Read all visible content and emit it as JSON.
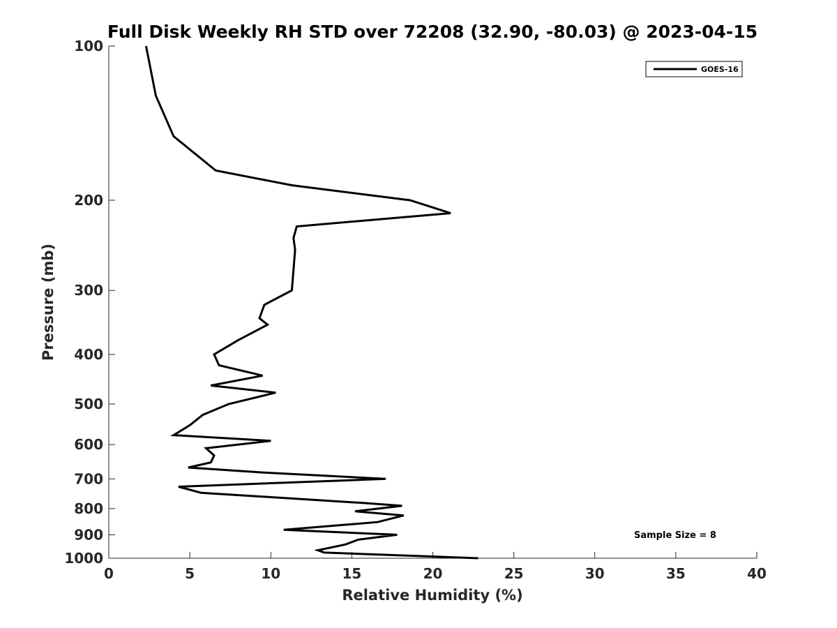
{
  "chart_data": {
    "type": "line",
    "title": "Full Disk Weekly RH STD over 72208 (32.90, -80.03) @ 2023-04-15",
    "xlabel": "Relative Humidity (%)",
    "ylabel": "Pressure (mb)",
    "xlim": [
      0,
      40
    ],
    "ylim": [
      100,
      1000
    ],
    "y_scale": "log",
    "y_reversed": true,
    "x_ticks": [
      0,
      5,
      10,
      15,
      20,
      25,
      30,
      35,
      40
    ],
    "y_ticks": [
      100,
      200,
      300,
      400,
      500,
      600,
      700,
      800,
      900,
      1000
    ],
    "grid": false,
    "legend_position": "top-right",
    "annotation": "Sample Size = 8",
    "line_color": "#000000",
    "series": [
      {
        "name": "GOES-16",
        "points": [
          [
            2.3,
            100
          ],
          [
            2.9,
            125
          ],
          [
            4.0,
            150
          ],
          [
            6.6,
            175
          ],
          [
            11.3,
            187
          ],
          [
            18.6,
            200
          ],
          [
            21.1,
            212
          ],
          [
            11.6,
            225
          ],
          [
            11.4,
            237
          ],
          [
            11.5,
            250
          ],
          [
            11.3,
            300
          ],
          [
            9.6,
            320
          ],
          [
            9.3,
            340
          ],
          [
            9.8,
            350
          ],
          [
            8.0,
            375
          ],
          [
            6.5,
            400
          ],
          [
            6.8,
            420
          ],
          [
            9.5,
            440
          ],
          [
            6.3,
            460
          ],
          [
            10.3,
            475
          ],
          [
            7.4,
            500
          ],
          [
            5.8,
            525
          ],
          [
            5.0,
            550
          ],
          [
            4.0,
            575
          ],
          [
            10.0,
            590
          ],
          [
            6.0,
            610
          ],
          [
            6.5,
            630
          ],
          [
            6.3,
            650
          ],
          [
            4.9,
            665
          ],
          [
            9.5,
            680
          ],
          [
            17.1,
            700
          ],
          [
            4.3,
            725
          ],
          [
            5.7,
            745
          ],
          [
            15.7,
            780
          ],
          [
            18.1,
            790
          ],
          [
            15.2,
            810
          ],
          [
            18.2,
            825
          ],
          [
            16.6,
            850
          ],
          [
            10.8,
            880
          ],
          [
            17.8,
            900
          ],
          [
            15.4,
            920
          ],
          [
            14.6,
            940
          ],
          [
            12.9,
            965
          ],
          [
            13.3,
            975
          ],
          [
            22.8,
            1000
          ]
        ]
      }
    ]
  }
}
